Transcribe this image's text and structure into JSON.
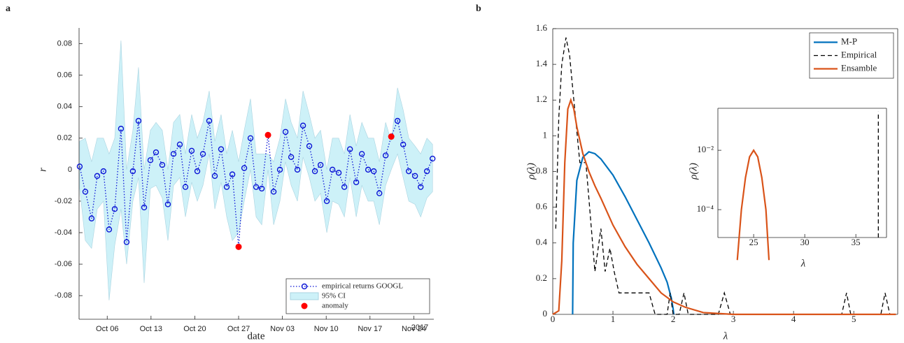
{
  "chart_data": [
    {
      "type": "line",
      "panel_label": "a",
      "x_label": "date",
      "y_label": "r",
      "x_secondary_label": "2017",
      "x": [
        274.6,
        275.5,
        276.5,
        277.4,
        278.4,
        279.3,
        280.2,
        281.2,
        282.1,
        283.1,
        284.0,
        284.9,
        285.9,
        286.8,
        287.8,
        288.7,
        289.6,
        290.6,
        291.5,
        292.5,
        293.4,
        294.3,
        295.3,
        296.2,
        297.2,
        298.1,
        299.0,
        300.0,
        300.9,
        301.9,
        302.8,
        303.7,
        304.7,
        305.6,
        306.6,
        307.5,
        308.4,
        309.4,
        310.3,
        311.3,
        312.2,
        313.1,
        314.1,
        315.0,
        316.0,
        316.9,
        317.8,
        318.8,
        319.7,
        320.7,
        321.6,
        322.5,
        323.5,
        324.4,
        325.4,
        326.3,
        327.2,
        328.2,
        329.1,
        330.1,
        331.0
      ],
      "series": [
        {
          "name": "empirical returns GOOGL",
          "kind": "line",
          "color": "#0a14d6",
          "linestyle": "dotted",
          "marker": "circle",
          "values": [
            0.002,
            -0.014,
            -0.031,
            -0.004,
            -0.001,
            -0.038,
            -0.025,
            0.026,
            -0.046,
            -0.001,
            0.031,
            -0.024,
            0.006,
            0.011,
            0.003,
            -0.022,
            0.01,
            0.016,
            -0.011,
            0.012,
            -0.001,
            0.01,
            0.031,
            -0.004,
            0.013,
            -0.011,
            -0.003,
            -0.049,
            0.001,
            0.02,
            -0.011,
            -0.012,
            0.022,
            -0.014,
            0.0,
            0.024,
            0.008,
            0.0,
            0.028,
            0.015,
            -0.001,
            0.003,
            -0.02,
            0.0,
            -0.002,
            -0.011,
            0.013,
            -0.008,
            0.01,
            0.0,
            -0.001,
            -0.015,
            0.009,
            0.021,
            0.031,
            0.016,
            -0.001,
            -0.004,
            -0.011,
            -0.001,
            0.007
          ]
        },
        {
          "name": "95% CI",
          "kind": "band",
          "color": "#cdf1f8",
          "upper": [
            0.018,
            0.02,
            0.005,
            0.02,
            0.02,
            0.01,
            0.02,
            0.082,
            0.0,
            0.025,
            0.065,
            0.0,
            0.025,
            0.03,
            0.025,
            0.0,
            0.03,
            0.035,
            0.01,
            0.035,
            0.02,
            0.03,
            0.05,
            0.018,
            0.035,
            0.01,
            0.025,
            0.005,
            0.025,
            0.045,
            0.01,
            0.01,
            0.01,
            0.005,
            0.02,
            0.045,
            0.03,
            0.02,
            0.05,
            0.035,
            0.02,
            0.025,
            0.0,
            0.02,
            0.02,
            0.01,
            0.035,
            0.015,
            0.03,
            0.02,
            0.02,
            0.005,
            0.03,
            0.018,
            0.052,
            0.038,
            0.02,
            0.015,
            0.01,
            0.02,
            0.016
          ],
          "lower": [
            -0.012,
            -0.045,
            -0.05,
            -0.025,
            -0.02,
            -0.083,
            -0.048,
            -0.025,
            -0.06,
            -0.02,
            -0.005,
            -0.072,
            -0.012,
            -0.01,
            -0.018,
            -0.045,
            -0.01,
            -0.005,
            -0.03,
            -0.008,
            -0.02,
            -0.01,
            0.01,
            -0.025,
            -0.008,
            -0.03,
            -0.045,
            -0.04,
            -0.02,
            0.0,
            -0.03,
            -0.035,
            0.0,
            -0.035,
            -0.02,
            0.005,
            -0.01,
            -0.02,
            0.008,
            -0.005,
            -0.02,
            -0.015,
            -0.04,
            -0.02,
            -0.022,
            -0.03,
            -0.005,
            -0.03,
            -0.01,
            -0.02,
            -0.02,
            -0.035,
            -0.01,
            0.0,
            0.01,
            -0.005,
            -0.02,
            -0.022,
            -0.03,
            -0.018,
            -0.014
          ]
        },
        {
          "name": "anomaly",
          "kind": "scatter",
          "color": "#ff0000",
          "x": [
            300.0,
            304.7,
            324.4
          ],
          "values": [
            -0.049,
            0.022,
            0.021
          ]
        }
      ],
      "xlim": [
        274.5,
        331.2
      ],
      "xticks": [
        {
          "value": 279,
          "label": "Oct 06"
        },
        {
          "value": 286,
          "label": "Oct 13"
        },
        {
          "value": 293,
          "label": "Oct 20"
        },
        {
          "value": 300,
          "label": "Oct 27"
        },
        {
          "value": 307,
          "label": "Nov 03"
        },
        {
          "value": 314,
          "label": "Nov 10"
        },
        {
          "value": 321,
          "label": "Nov 17"
        },
        {
          "value": 328,
          "label": "Nov 24"
        }
      ],
      "ylim": [
        -0.095,
        0.09
      ],
      "yticks": [
        -0.08,
        -0.06,
        -0.04,
        -0.02,
        0,
        0.02,
        0.04,
        0.06,
        0.08
      ],
      "legend": "lower right",
      "box": false
    },
    {
      "type": "line",
      "panel_label": "b",
      "x_label": "λ",
      "y_label": "ρ(λ)",
      "series": [
        {
          "name": "M-P",
          "kind": "line",
          "color": "#0072bd",
          "linestyle": "solid",
          "x": [
            0.33,
            0.34,
            0.4,
            0.5,
            0.6,
            0.7,
            0.8,
            1.0,
            1.2,
            1.4,
            1.6,
            1.8,
            1.9,
            1.97,
            2.0,
            2.01
          ],
          "values": [
            0,
            0.4,
            0.75,
            0.88,
            0.91,
            0.9,
            0.87,
            0.78,
            0.66,
            0.53,
            0.4,
            0.26,
            0.18,
            0.09,
            0.03,
            0
          ]
        },
        {
          "name": "Empirical",
          "kind": "line",
          "color": "#000000",
          "linestyle": "dashed",
          "x": [
            0.05,
            0.1,
            0.15,
            0.22,
            0.28,
            0.35,
            0.45,
            0.55,
            0.6,
            0.7,
            0.8,
            0.87,
            0.95,
            1.02,
            1.1,
            1.15,
            1.2,
            1.5,
            1.6,
            1.7,
            1.9,
            1.95,
            2.0,
            2.1,
            2.18,
            2.25,
            2.75,
            2.85,
            2.95,
            4.8,
            4.88,
            4.95,
            5.45,
            5.52,
            5.6,
            5.7
          ],
          "values": [
            0.48,
            1.1,
            1.4,
            1.55,
            1.45,
            1.2,
            0.85,
            0.85,
            0.65,
            0.24,
            0.48,
            0.24,
            0.37,
            0.24,
            0.12,
            0.12,
            0.12,
            0.12,
            0.12,
            0,
            0,
            0.12,
            0,
            0,
            0.12,
            0,
            0,
            0.12,
            0,
            0,
            0.12,
            0,
            0,
            0.12,
            0,
            0
          ]
        },
        {
          "name": "Ensamble",
          "kind": "line",
          "color": "#d95319",
          "linestyle": "solid",
          "x": [
            0,
            0.1,
            0.15,
            0.2,
            0.25,
            0.3,
            0.35,
            0.4,
            0.5,
            0.6,
            0.7,
            0.8,
            1.0,
            1.2,
            1.4,
            1.6,
            1.8,
            2.0,
            2.2,
            2.5,
            3.0,
            5.7
          ],
          "values": [
            0,
            0.02,
            0.3,
            0.85,
            1.15,
            1.2,
            1.15,
            1.05,
            0.9,
            0.8,
            0.72,
            0.65,
            0.5,
            0.38,
            0.28,
            0.2,
            0.12,
            0.07,
            0.04,
            0.01,
            0,
            0
          ]
        }
      ],
      "xlim": [
        0,
        5.73
      ],
      "xticks": [
        0,
        1,
        2,
        3,
        4,
        5
      ],
      "ylim": [
        0,
        1.6
      ],
      "yticks": [
        0,
        0.2,
        0.4,
        0.6,
        0.8,
        1,
        1.2,
        1.4,
        1.6
      ],
      "legend": "upper right",
      "box": true
    },
    {
      "type": "line",
      "x_label": "λ",
      "y_label": "ρ(λ)",
      "ylog": true,
      "series": [
        {
          "kind": "line",
          "color": "#d95319",
          "linestyle": "solid",
          "x": [
            23.4,
            23.8,
            24.2,
            24.6,
            25,
            25.4,
            25.8,
            26.2,
            26.5
          ],
          "values": [
            2e-06,
            0.0001,
            0.0012,
            0.006,
            0.01,
            0.006,
            0.0012,
            0.0001,
            2e-06
          ]
        },
        {
          "kind": "line",
          "color": "#000000",
          "linestyle": "dashed",
          "x": [
            37.2,
            37.2
          ],
          "values": [
            1.15e-05,
            0.2
          ]
        }
      ],
      "xlim": [
        21.5,
        38
      ],
      "xticks": [
        25,
        30,
        35
      ],
      "ylim": [
        1.15e-05,
        0.26
      ],
      "yticks": [
        {
          "value": 0.0001,
          "label": "10⁻⁴"
        },
        {
          "value": 0.01,
          "label": "10⁻²"
        }
      ],
      "box": true
    }
  ]
}
